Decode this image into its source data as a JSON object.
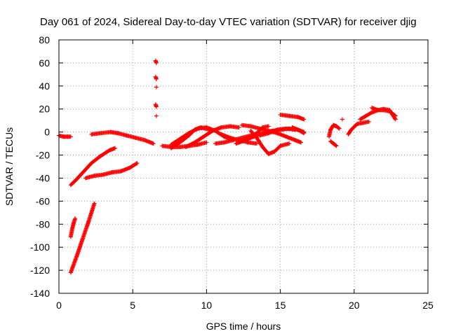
{
  "chart_data": {
    "type": "scatter",
    "title": "Day 061 of 2024, Sidereal Day-to-day VTEC variation (SDTVAR) for receiver djig",
    "xlabel": "GPS time / hours",
    "ylabel": "SDTVAR / TECUs",
    "xlim": [
      0,
      25
    ],
    "ylim": [
      -140,
      80
    ],
    "xticks": [
      0,
      5,
      10,
      15,
      20,
      25
    ],
    "yticks": [
      -140,
      -120,
      -100,
      -80,
      -60,
      -40,
      -20,
      0,
      20,
      40,
      60,
      80
    ],
    "grid": true,
    "legend": "none",
    "marker": "plus",
    "color": "#ff0000",
    "segments": [
      [
        [
          0.0,
          -3
        ],
        [
          0.3,
          -4
        ],
        [
          0.6,
          -4
        ],
        [
          0.8,
          -4
        ]
      ],
      [
        [
          0.8,
          -46
        ],
        [
          1.2,
          -41
        ],
        [
          1.7,
          -34
        ],
        [
          2.2,
          -27
        ],
        [
          2.8,
          -21
        ],
        [
          3.4,
          -16
        ],
        [
          3.8,
          -14
        ]
      ],
      [
        [
          0.8,
          -122
        ],
        [
          1.2,
          -108
        ],
        [
          1.6,
          -93
        ],
        [
          2.0,
          -78
        ],
        [
          2.4,
          -62
        ]
      ],
      [
        [
          0.8,
          -91
        ],
        [
          0.9,
          -84
        ],
        [
          1.0,
          -79
        ],
        [
          1.1,
          -75
        ]
      ],
      [
        [
          1.8,
          -40
        ],
        [
          2.4,
          -38
        ],
        [
          3.0,
          -37
        ],
        [
          3.6,
          -35
        ],
        [
          4.2,
          -34
        ],
        [
          4.8,
          -31
        ],
        [
          5.3,
          -27
        ]
      ],
      [
        [
          2.2,
          -2
        ],
        [
          2.8,
          -1
        ],
        [
          3.5,
          0
        ],
        [
          4.0,
          -1
        ],
        [
          4.6,
          -3
        ],
        [
          5.2,
          -5
        ],
        [
          5.8,
          -7
        ],
        [
          6.4,
          -10
        ]
      ],
      [
        [
          6.55,
          62
        ],
        [
          6.6,
          60
        ]
      ],
      [
        [
          6.55,
          48
        ],
        [
          6.6,
          46
        ]
      ],
      [
        [
          6.6,
          39
        ]
      ],
      [
        [
          6.55,
          24
        ],
        [
          6.6,
          22
        ]
      ],
      [
        [
          6.6,
          14
        ]
      ],
      [
        [
          7.0,
          -12
        ],
        [
          7.6,
          -13
        ],
        [
          8.2,
          -13
        ],
        [
          8.8,
          -12
        ],
        [
          9.4,
          -11
        ],
        [
          10.0,
          -9
        ]
      ],
      [
        [
          7.6,
          -11
        ],
        [
          8.2,
          -6
        ],
        [
          8.8,
          -1
        ],
        [
          9.4,
          3
        ],
        [
          10.0,
          4
        ],
        [
          10.6,
          1
        ],
        [
          11.2,
          -4
        ],
        [
          11.8,
          -7
        ]
      ],
      [
        [
          7.6,
          -14
        ],
        [
          8.2,
          -9
        ],
        [
          8.8,
          -3
        ],
        [
          9.2,
          2
        ],
        [
          9.6,
          4
        ],
        [
          10.2,
          2
        ]
      ],
      [
        [
          8.6,
          -13
        ],
        [
          9.2,
          -9
        ],
        [
          9.8,
          -4
        ],
        [
          10.4,
          1
        ],
        [
          11.0,
          4
        ],
        [
          11.6,
          5
        ],
        [
          12.2,
          4
        ]
      ],
      [
        [
          10.6,
          -10
        ],
        [
          11.2,
          -9
        ],
        [
          11.8,
          -7
        ],
        [
          12.4,
          -5
        ],
        [
          13.0,
          -3
        ],
        [
          13.6,
          -1
        ]
      ],
      [
        [
          11.0,
          -2
        ],
        [
          11.6,
          -5
        ],
        [
          12.2,
          -7
        ],
        [
          12.8,
          -9
        ],
        [
          13.4,
          -10
        ]
      ],
      [
        [
          12.0,
          -10
        ],
        [
          12.6,
          -7
        ],
        [
          13.2,
          -4
        ],
        [
          13.8,
          -1
        ],
        [
          14.4,
          1
        ],
        [
          15.0,
          2
        ],
        [
          15.6,
          3
        ],
        [
          16.2,
          2
        ],
        [
          16.6,
          0
        ]
      ],
      [
        [
          12.4,
          6
        ],
        [
          13.0,
          5
        ],
        [
          13.6,
          3
        ],
        [
          14.2,
          1
        ],
        [
          14.8,
          -1
        ],
        [
          15.4,
          -4
        ],
        [
          16.0,
          -7
        ],
        [
          16.4,
          -9
        ]
      ],
      [
        [
          12.2,
          -9
        ],
        [
          12.8,
          -6
        ],
        [
          13.4,
          -1
        ],
        [
          13.8,
          4
        ],
        [
          14.2,
          5
        ]
      ],
      [
        [
          13.0,
          1
        ],
        [
          13.4,
          -5
        ],
        [
          13.8,
          -13
        ],
        [
          14.2,
          -19
        ],
        [
          14.6,
          -17
        ],
        [
          15.0,
          -12
        ],
        [
          15.6,
          -10
        ]
      ],
      [
        [
          13.6,
          -3
        ],
        [
          14.2,
          -1
        ],
        [
          14.8,
          2
        ],
        [
          15.4,
          3
        ],
        [
          16.0,
          2
        ]
      ],
      [
        [
          15.0,
          15
        ],
        [
          15.6,
          14
        ],
        [
          16.2,
          13
        ],
        [
          16.6,
          11
        ]
      ],
      [
        [
          15.8,
          4
        ],
        [
          16.2,
          2
        ],
        [
          16.6,
          -1
        ]
      ],
      [
        [
          18.3,
          -4
        ],
        [
          18.4,
          2
        ],
        [
          18.6,
          6
        ],
        [
          18.8,
          5
        ],
        [
          19.0,
          3
        ]
      ],
      [
        [
          18.4,
          -8
        ],
        [
          18.6,
          -10
        ],
        [
          18.8,
          -12
        ]
      ],
      [
        [
          19.2,
          11
        ]
      ],
      [
        [
          19.6,
          -2
        ],
        [
          19.8,
          2
        ],
        [
          20.2,
          7
        ],
        [
          20.6,
          8
        ],
        [
          21.0,
          9
        ]
      ],
      [
        [
          20.4,
          11
        ],
        [
          20.8,
          14
        ],
        [
          21.2,
          17
        ],
        [
          21.6,
          19
        ],
        [
          22.0,
          19
        ],
        [
          22.4,
          18
        ],
        [
          22.8,
          14
        ]
      ],
      [
        [
          21.2,
          21
        ],
        [
          21.6,
          19
        ],
        [
          22.0,
          20
        ],
        [
          22.4,
          19
        ],
        [
          22.8,
          11
        ]
      ]
    ]
  }
}
